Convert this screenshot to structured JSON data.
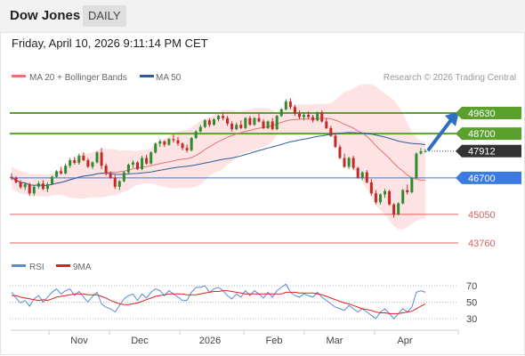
{
  "header": {
    "title": "Dow Jones",
    "timeframe": "DAILY"
  },
  "datetime": "Friday, April 10, 2026 9:11:14 PM CET",
  "legend": {
    "ma20": "MA 20 + Bollinger Bands",
    "ma50": "MA 50",
    "credit": "Research © 2026 Trading Central"
  },
  "rsi_legend": {
    "rsi": "RSI",
    "ma9": "9MA"
  },
  "colors": {
    "up": "#2d8c2d",
    "down": "#c62828",
    "ma20": "#e57373",
    "ma50": "#2e5d9a",
    "band": "#fde0e0",
    "resistance": "#5aa02c",
    "pivot": "#3b7be0",
    "support": "#e06060",
    "last": "#333333",
    "rsi": "#5b8ad6",
    "rsi_ma": "#e02020"
  },
  "chart_data": {
    "type": "candlestick",
    "x_labels": [
      "Nov",
      "Dec",
      "2026",
      "Feb",
      "Mar",
      "Apr"
    ],
    "y_tick_labels": [
      49630,
      48700,
      47912,
      46700,
      45050,
      43760
    ],
    "levels": [
      {
        "value": 49630,
        "label": "49630",
        "kind": "resistance"
      },
      {
        "value": 48700,
        "label": "48700",
        "kind": "resistance"
      },
      {
        "value": 46700,
        "label": "46700",
        "kind": "pivot"
      },
      {
        "value": 45050,
        "label": "45050",
        "kind": "support"
      },
      {
        "value": 43760,
        "label": "43760",
        "kind": "support"
      }
    ],
    "last_price": {
      "value": 47912,
      "label": "47912"
    },
    "candles": [
      [
        46750,
        46900,
        46600,
        46700
      ],
      [
        46700,
        46780,
        46450,
        46500
      ],
      [
        46500,
        46600,
        46200,
        46280
      ],
      [
        46280,
        46500,
        46150,
        46420
      ],
      [
        46420,
        46480,
        45900,
        46000
      ],
      [
        46000,
        46350,
        45900,
        46300
      ],
      [
        46300,
        46550,
        46200,
        46450
      ],
      [
        46450,
        46600,
        46150,
        46200
      ],
      [
        46200,
        46500,
        46050,
        46420
      ],
      [
        46420,
        46800,
        46400,
        46750
      ],
      [
        46750,
        47050,
        46700,
        47000
      ],
      [
        47000,
        47200,
        46850,
        46900
      ],
      [
        46900,
        47350,
        46850,
        47250
      ],
      [
        47250,
        47600,
        47150,
        47500
      ],
      [
        47500,
        47650,
        47300,
        47380
      ],
      [
        47380,
        47800,
        47300,
        47700
      ],
      [
        47700,
        47850,
        47450,
        47500
      ],
      [
        47500,
        47600,
        47150,
        47200
      ],
      [
        47200,
        47450,
        47100,
        47400
      ],
      [
        47400,
        47900,
        47350,
        47850
      ],
      [
        47850,
        48050,
        47100,
        47250
      ],
      [
        47250,
        47350,
        46800,
        46900
      ],
      [
        46900,
        47000,
        46650,
        46700
      ],
      [
        46700,
        46850,
        46200,
        46300
      ],
      [
        46300,
        46600,
        46150,
        46550
      ],
      [
        46550,
        47000,
        46500,
        46950
      ],
      [
        46950,
        47350,
        46900,
        47300
      ],
      [
        47300,
        47500,
        47150,
        47400
      ],
      [
        47400,
        47450,
        47050,
        47100
      ],
      [
        47100,
        47700,
        47050,
        47600
      ],
      [
        47600,
        47750,
        47300,
        47350
      ],
      [
        47350,
        47900,
        47300,
        47850
      ],
      [
        47850,
        48300,
        47800,
        48250
      ],
      [
        48250,
        48450,
        48100,
        48350
      ],
      [
        48350,
        48400,
        48100,
        48200
      ],
      [
        48200,
        48500,
        48150,
        48450
      ],
      [
        48450,
        48650,
        48300,
        48400
      ],
      [
        48400,
        48550,
        48150,
        48250
      ],
      [
        48250,
        48300,
        47950,
        48050
      ],
      [
        48050,
        48200,
        47850,
        47950
      ],
      [
        47950,
        48550,
        47900,
        48500
      ],
      [
        48500,
        48850,
        48450,
        48800
      ],
      [
        48800,
        49100,
        48750,
        49000
      ],
      [
        49000,
        49350,
        48950,
        49300
      ],
      [
        49300,
        49400,
        49000,
        49100
      ],
      [
        49100,
        49400,
        49050,
        49350
      ],
      [
        49350,
        49550,
        49250,
        49500
      ],
      [
        49500,
        49650,
        49300,
        49400
      ],
      [
        49400,
        49500,
        49050,
        49150
      ],
      [
        49150,
        49250,
        48800,
        48900
      ],
      [
        48900,
        49200,
        48850,
        49100
      ],
      [
        49100,
        49300,
        48900,
        48950
      ],
      [
        48950,
        49450,
        48900,
        49400
      ],
      [
        49400,
        49500,
        49050,
        49100
      ],
      [
        49100,
        49450,
        49050,
        49400
      ],
      [
        49400,
        49600,
        49200,
        49250
      ],
      [
        49250,
        49350,
        48900,
        48950
      ],
      [
        48950,
        49300,
        48900,
        49250
      ],
      [
        49250,
        49400,
        48850,
        48900
      ],
      [
        48900,
        49550,
        48850,
        49500
      ],
      [
        49500,
        49850,
        49450,
        49800
      ],
      [
        49800,
        50250,
        49750,
        50150
      ],
      [
        50150,
        50300,
        49800,
        49900
      ],
      [
        49900,
        50000,
        49500,
        49600
      ],
      [
        49600,
        49750,
        49350,
        49450
      ],
      [
        49450,
        49650,
        49300,
        49550
      ],
      [
        49550,
        49700,
        49350,
        49450
      ],
      [
        49450,
        49550,
        49200,
        49300
      ],
      [
        49300,
        49700,
        49250,
        49650
      ],
      [
        49650,
        49750,
        49200,
        49250
      ],
      [
        49250,
        49400,
        48900,
        48950
      ],
      [
        48950,
        49050,
        48550,
        48600
      ],
      [
        48600,
        48700,
        48050,
        48100
      ],
      [
        48100,
        48200,
        47550,
        47600
      ],
      [
        47600,
        47800,
        47150,
        47200
      ],
      [
        47200,
        47650,
        47100,
        47600
      ],
      [
        47600,
        47700,
        47050,
        47150
      ],
      [
        47150,
        47200,
        46650,
        46700
      ],
      [
        46700,
        47000,
        46600,
        46950
      ],
      [
        46950,
        47050,
        46450,
        46500
      ],
      [
        46500,
        46650,
        45900,
        46000
      ],
      [
        46000,
        46150,
        45500,
        45600
      ],
      [
        45600,
        46000,
        45500,
        45950
      ],
      [
        45950,
        46200,
        45800,
        46100
      ],
      [
        46100,
        46150,
        45450,
        45500
      ],
      [
        45500,
        45550,
        44900,
        45050
      ],
      [
        45050,
        45600,
        45000,
        45550
      ],
      [
        45550,
        46200,
        45500,
        46150
      ],
      [
        46150,
        46400,
        45950,
        46050
      ],
      [
        46050,
        46750,
        46000,
        46700
      ],
      [
        46700,
        47850,
        46650,
        47800
      ],
      [
        47800,
        48050,
        47750,
        47900
      ],
      [
        47900,
        48000,
        47850,
        47912
      ]
    ],
    "rsi_axis": [
      70,
      50,
      30
    ],
    "rsi": [
      62,
      55,
      49,
      52,
      45,
      54,
      58,
      50,
      56,
      62,
      66,
      60,
      64,
      66,
      58,
      63,
      56,
      50,
      57,
      62,
      48,
      44,
      42,
      38,
      46,
      54,
      58,
      60,
      52,
      60,
      55,
      62,
      66,
      64,
      58,
      64,
      60,
      56,
      52,
      52,
      62,
      68,
      68,
      70,
      62,
      66,
      68,
      64,
      58,
      54,
      60,
      56,
      64,
      58,
      64,
      60,
      55,
      62,
      56,
      64,
      68,
      72,
      62,
      58,
      56,
      60,
      58,
      56,
      62,
      56,
      52,
      48,
      44,
      42,
      40,
      46,
      42,
      38,
      42,
      38,
      34,
      30,
      38,
      42,
      36,
      30,
      36,
      42,
      38,
      44,
      62,
      64,
      62
    ],
    "rsi_ma": [
      58,
      58,
      56,
      55,
      54,
      53,
      52,
      53,
      52,
      54,
      56,
      57,
      58,
      59,
      60,
      60,
      60,
      59,
      59,
      59,
      57,
      55,
      52,
      50,
      48,
      47,
      47,
      48,
      49,
      51,
      53,
      55,
      57,
      58,
      59,
      60,
      60,
      60,
      60,
      59,
      59,
      59,
      60,
      61,
      62,
      63,
      63,
      64,
      64,
      63,
      62,
      61,
      60,
      60,
      60,
      60,
      60,
      60,
      60,
      60,
      60,
      62,
      62,
      62,
      61,
      61,
      61,
      61,
      60,
      59,
      57,
      55,
      53,
      51,
      49,
      48,
      46,
      44,
      42,
      41,
      40,
      38,
      37,
      37,
      36,
      36,
      36,
      37,
      38,
      39,
      42,
      45,
      48
    ]
  }
}
